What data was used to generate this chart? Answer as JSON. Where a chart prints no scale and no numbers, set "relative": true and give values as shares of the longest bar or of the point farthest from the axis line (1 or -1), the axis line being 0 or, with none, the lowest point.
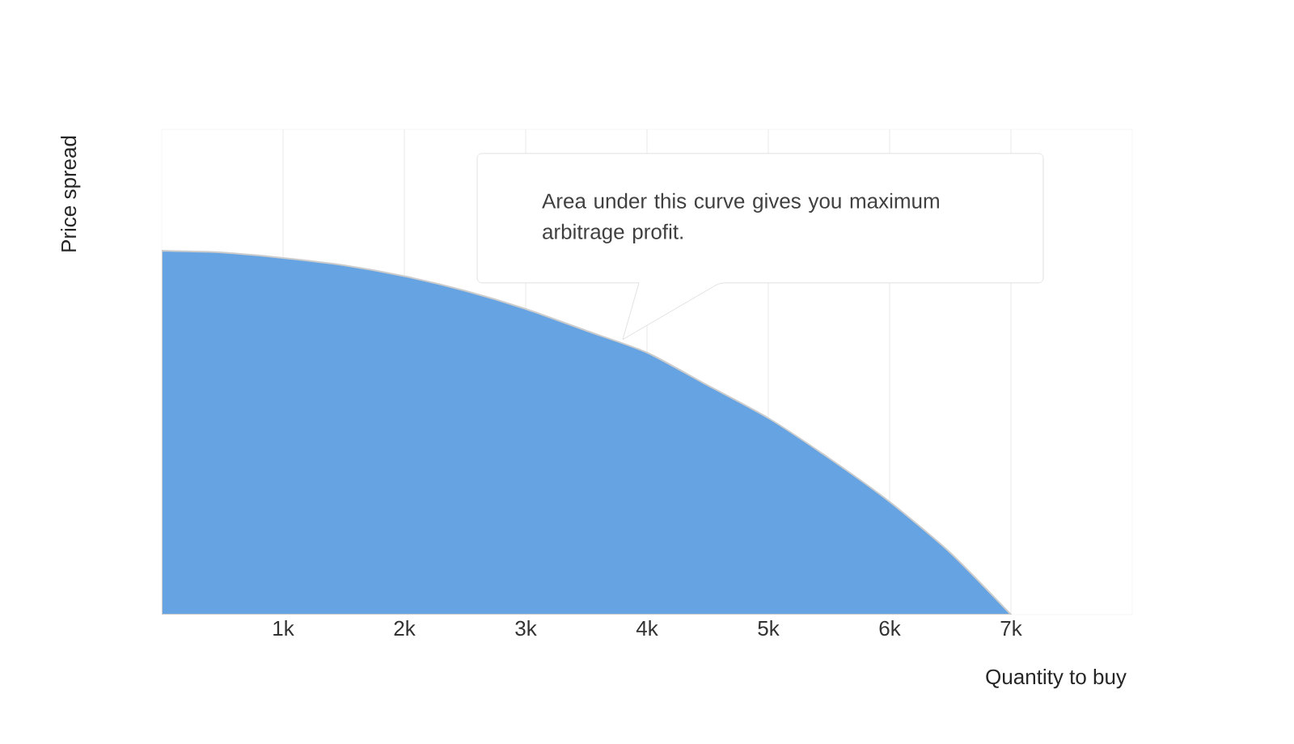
{
  "chart_data": {
    "type": "area",
    "relative": true,
    "xlabel": "Quantity to buy",
    "ylabel": "Price spread",
    "x": [
      0,
      500,
      1000,
      1500,
      2000,
      2500,
      3000,
      3500,
      4000,
      4500,
      5000,
      5500,
      6000,
      6500,
      7000
    ],
    "series": [
      {
        "color": "#65a3e2",
        "values": [
          1,
          0.995,
          0.98,
          0.96,
          0.93,
          0.89,
          0.84,
          0.78,
          0.72,
          0.63,
          0.54,
          0.43,
          0.31,
          0.17,
          0
        ]
      }
    ],
    "xlim": [
      0,
      8000
    ],
    "xticks": [
      {
        "value": 1000,
        "label": "1k"
      },
      {
        "value": 2000,
        "label": "2k"
      },
      {
        "value": 3000,
        "label": "3k"
      },
      {
        "value": 4000,
        "label": "4k"
      },
      {
        "value": 5000,
        "label": "5k"
      },
      {
        "value": 6000,
        "label": "6k"
      },
      {
        "value": 7000,
        "label": "7k"
      }
    ],
    "grid": true,
    "annotations": [
      "Area under this curve gives you maximum arbitrage profit."
    ]
  }
}
